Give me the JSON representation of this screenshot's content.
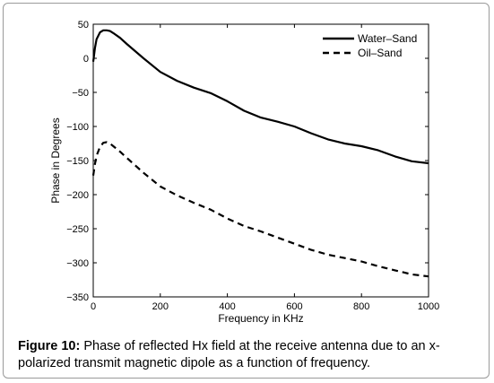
{
  "caption": {
    "label": "Figure 10:",
    "text": "Phase of reflected Hx field at the receive antenna due to an x- polarized transmit magnetic dipole as a function of frequency."
  },
  "chart_data": {
    "type": "line",
    "title": "",
    "xlabel": "Frequency in KHz",
    "ylabel": "Phase in Degrees",
    "xlim": [
      0,
      1000
    ],
    "ylim": [
      -350,
      50
    ],
    "xticks": [
      0,
      200,
      400,
      600,
      800,
      1000
    ],
    "yticks": [
      50,
      0,
      -50,
      -100,
      -150,
      -200,
      -250,
      -300,
      -350
    ],
    "grid": false,
    "legend_position": "top-right",
    "series": [
      {
        "name": "Water–Sand",
        "style": "solid",
        "color": "#000000",
        "x": [
          0,
          5,
          10,
          20,
          30,
          40,
          50,
          60,
          80,
          100,
          150,
          200,
          250,
          300,
          350,
          400,
          450,
          500,
          550,
          600,
          650,
          700,
          750,
          800,
          850,
          900,
          950,
          1000
        ],
        "y": [
          -5,
          15,
          28,
          38,
          41,
          41,
          40,
          37,
          30,
          21,
          0,
          -20,
          -33,
          -43,
          -51,
          -63,
          -77,
          -87,
          -93,
          -100,
          -110,
          -119,
          -125,
          -129,
          -135,
          -144,
          -151,
          -154
        ]
      },
      {
        "name": "Oil–Sand",
        "style": "dashed",
        "color": "#000000",
        "x": [
          0,
          5,
          10,
          20,
          30,
          40,
          50,
          60,
          80,
          100,
          150,
          200,
          250,
          300,
          350,
          400,
          450,
          500,
          550,
          600,
          650,
          700,
          750,
          800,
          850,
          900,
          950,
          1000
        ],
        "y": [
          -172,
          -155,
          -143,
          -130,
          -124,
          -123,
          -125,
          -129,
          -137,
          -146,
          -168,
          -188,
          -201,
          -212,
          -222,
          -235,
          -246,
          -254,
          -263,
          -272,
          -281,
          -288,
          -293,
          -298,
          -305,
          -311,
          -317,
          -320
        ]
      }
    ]
  }
}
